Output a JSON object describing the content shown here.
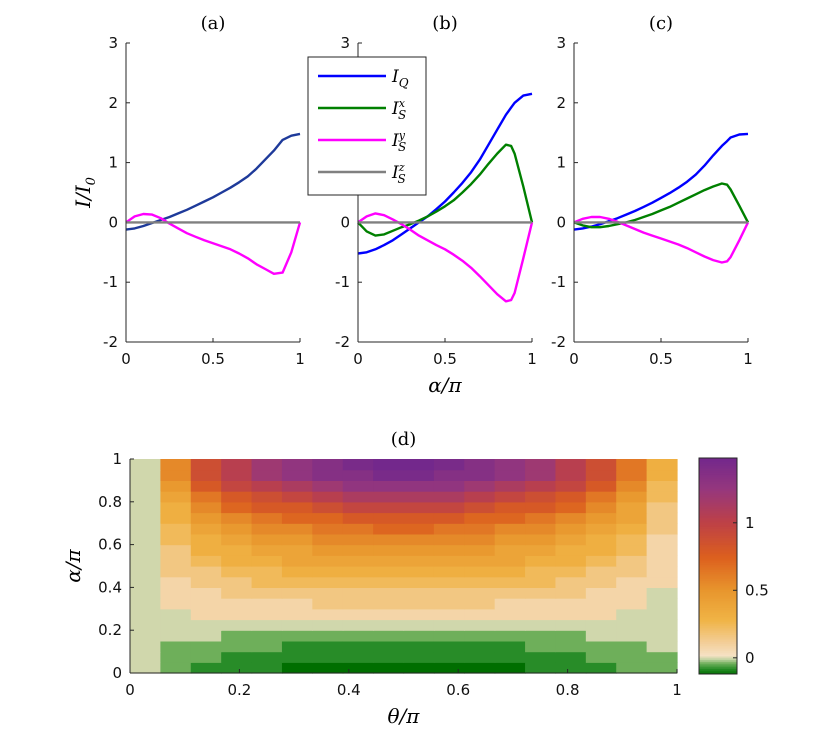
{
  "chart_data": [
    {
      "panel": "a",
      "type": "line",
      "title": "(a)",
      "ylabel": "I/I0",
      "xlim": [
        0,
        1
      ],
      "ylim": [
        -2,
        3
      ],
      "xticks": [
        "0",
        "0.5",
        "1"
      ],
      "yticks": [
        "-2",
        "-1",
        "0",
        "1",
        "2",
        "3"
      ],
      "x": [
        0,
        0.05,
        0.1,
        0.15,
        0.2,
        0.25,
        0.3,
        0.35,
        0.4,
        0.45,
        0.5,
        0.55,
        0.6,
        0.65,
        0.7,
        0.75,
        0.8,
        0.85,
        0.9,
        0.95,
        1.0
      ],
      "series": [
        {
          "name": "I_Q",
          "color": "#1e3a9a",
          "values": [
            -0.12,
            -0.1,
            -0.06,
            -0.01,
            0.04,
            0.09,
            0.15,
            0.21,
            0.28,
            0.35,
            0.42,
            0.5,
            0.58,
            0.67,
            0.77,
            0.9,
            1.05,
            1.2,
            1.38,
            1.45,
            1.48
          ]
        },
        {
          "name": "I_S^y",
          "color": "#ff00ff",
          "values": [
            0,
            0.1,
            0.14,
            0.13,
            0.07,
            -0.02,
            -0.1,
            -0.18,
            -0.24,
            -0.3,
            -0.35,
            -0.4,
            -0.45,
            -0.52,
            -0.6,
            -0.7,
            -0.78,
            -0.86,
            -0.84,
            -0.5,
            0
          ]
        },
        {
          "name": "I_S^z",
          "color": "#808080",
          "values": [
            0,
            0,
            0,
            0,
            0,
            0,
            0,
            0,
            0,
            0,
            0,
            0,
            0,
            0,
            0,
            0,
            0,
            0,
            0,
            0,
            0
          ]
        }
      ]
    },
    {
      "panel": "b",
      "type": "line",
      "title": "(b)",
      "xlabel": "α/π",
      "xlim": [
        0,
        1
      ],
      "ylim": [
        -2,
        3
      ],
      "xticks": [
        "0",
        "0.5",
        "1"
      ],
      "yticks": [
        "-2",
        "-1",
        "0",
        "1",
        "2",
        "3"
      ],
      "x": [
        0,
        0.05,
        0.1,
        0.15,
        0.2,
        0.25,
        0.3,
        0.35,
        0.4,
        0.45,
        0.5,
        0.55,
        0.6,
        0.65,
        0.7,
        0.75,
        0.8,
        0.85,
        0.88,
        0.9,
        0.95,
        1.0
      ],
      "series": [
        {
          "name": "I_Q",
          "color": "#0000ff",
          "values": [
            -0.52,
            -0.5,
            -0.45,
            -0.38,
            -0.3,
            -0.2,
            -0.1,
            0.0,
            0.1,
            0.22,
            0.35,
            0.5,
            0.66,
            0.84,
            1.05,
            1.3,
            1.55,
            1.8,
            1.92,
            2.0,
            2.12,
            2.15
          ]
        },
        {
          "name": "I_S^x",
          "color": "#008000",
          "values": [
            0,
            -0.15,
            -0.22,
            -0.2,
            -0.14,
            -0.08,
            -0.03,
            0.03,
            0.1,
            0.18,
            0.27,
            0.37,
            0.5,
            0.64,
            0.8,
            0.98,
            1.15,
            1.3,
            1.28,
            1.15,
            0.6,
            0
          ]
        },
        {
          "name": "I_S^y",
          "color": "#ff00ff",
          "values": [
            0,
            0.1,
            0.15,
            0.12,
            0.05,
            -0.03,
            -0.12,
            -0.22,
            -0.3,
            -0.38,
            -0.45,
            -0.54,
            -0.64,
            -0.76,
            -0.9,
            -1.05,
            -1.2,
            -1.32,
            -1.3,
            -1.18,
            -0.6,
            0
          ]
        },
        {
          "name": "I_S^z",
          "color": "#808080",
          "values": [
            0,
            0,
            0,
            0,
            0,
            0,
            0,
            0,
            0,
            0,
            0,
            0,
            0,
            0,
            0,
            0,
            0,
            0,
            0,
            0,
            0,
            0
          ]
        }
      ]
    },
    {
      "panel": "c",
      "type": "line",
      "title": "(c)",
      "xlim": [
        0,
        1
      ],
      "ylim": [
        -2,
        3
      ],
      "xticks": [
        "0",
        "0.5",
        "1"
      ],
      "yticks": [
        "-2",
        "-1",
        "0",
        "1",
        "2",
        "3"
      ],
      "x": [
        0,
        0.05,
        0.1,
        0.15,
        0.2,
        0.25,
        0.3,
        0.35,
        0.4,
        0.45,
        0.5,
        0.55,
        0.6,
        0.65,
        0.7,
        0.75,
        0.8,
        0.85,
        0.88,
        0.9,
        0.95,
        1.0
      ],
      "series": [
        {
          "name": "I_Q",
          "color": "#0000ff",
          "values": [
            -0.12,
            -0.1,
            -0.07,
            -0.03,
            0.02,
            0.07,
            0.13,
            0.19,
            0.26,
            0.33,
            0.41,
            0.49,
            0.58,
            0.68,
            0.8,
            0.95,
            1.12,
            1.28,
            1.36,
            1.42,
            1.47,
            1.48
          ]
        },
        {
          "name": "I_S^x",
          "color": "#008000",
          "values": [
            0,
            -0.05,
            -0.08,
            -0.08,
            -0.06,
            -0.03,
            0.0,
            0.04,
            0.09,
            0.14,
            0.2,
            0.26,
            0.33,
            0.4,
            0.47,
            0.54,
            0.6,
            0.65,
            0.63,
            0.55,
            0.28,
            0
          ]
        },
        {
          "name": "I_S^y",
          "color": "#ff00ff",
          "values": [
            0,
            0.06,
            0.09,
            0.09,
            0.06,
            0.01,
            -0.05,
            -0.11,
            -0.17,
            -0.22,
            -0.27,
            -0.32,
            -0.37,
            -0.43,
            -0.5,
            -0.57,
            -0.63,
            -0.67,
            -0.65,
            -0.58,
            -0.3,
            0
          ]
        },
        {
          "name": "I_S^z",
          "color": "#808080",
          "values": [
            0,
            0,
            0,
            0,
            0,
            0,
            0,
            0,
            0,
            0,
            0,
            0,
            0,
            0,
            0,
            0,
            0,
            0,
            0,
            0,
            0,
            0
          ]
        }
      ]
    },
    {
      "panel": "d",
      "type": "heatmap",
      "title": "(d)",
      "xlabel": "θ/π",
      "ylabel": "α/π",
      "xlim": [
        0,
        1
      ],
      "ylim": [
        0,
        1
      ],
      "xticks": [
        "0",
        "0.2",
        "0.4",
        "0.6",
        "0.8",
        "1"
      ],
      "yticks": [
        "0",
        "0.2",
        "0.4",
        "0.6",
        "0.8",
        "1"
      ],
      "colorbar_ticks": [
        "0",
        "0.5",
        "1"
      ],
      "colorbar_range": [
        -0.12,
        1.48
      ],
      "columns": 18,
      "rows": 20,
      "theta_centers": [
        0.028,
        0.083,
        0.139,
        0.194,
        0.25,
        0.306,
        0.361,
        0.417,
        0.472,
        0.528,
        0.583,
        0.639,
        0.694,
        0.75,
        0.806,
        0.861,
        0.917,
        0.972
      ],
      "alpha_centers": [
        0.025,
        0.075,
        0.125,
        0.175,
        0.225,
        0.275,
        0.325,
        0.375,
        0.425,
        0.475,
        0.525,
        0.575,
        0.625,
        0.675,
        0.725,
        0.775,
        0.825,
        0.875,
        0.925,
        0.975
      ],
      "theta_profile": [
        0.0,
        0.37,
        0.6,
        0.72,
        0.82,
        0.88,
        0.93,
        0.97,
        1.0,
        1.0,
        0.97,
        0.93,
        0.88,
        0.82,
        0.72,
        0.6,
        0.45,
        0.2
      ],
      "alpha_profile": [
        -0.12,
        -0.1,
        -0.07,
        -0.03,
        0.02,
        0.07,
        0.13,
        0.19,
        0.26,
        0.33,
        0.41,
        0.49,
        0.58,
        0.68,
        0.8,
        0.95,
        1.12,
        1.28,
        1.42,
        1.48
      ]
    }
  ],
  "legend": {
    "entries": [
      {
        "label": "I_Q",
        "color": "#0000ff"
      },
      {
        "label": "I_S^x",
        "color": "#008000"
      },
      {
        "label": "I_S^y",
        "color": "#ff00ff"
      },
      {
        "label": "I_S^z",
        "color": "#808080"
      }
    ]
  }
}
